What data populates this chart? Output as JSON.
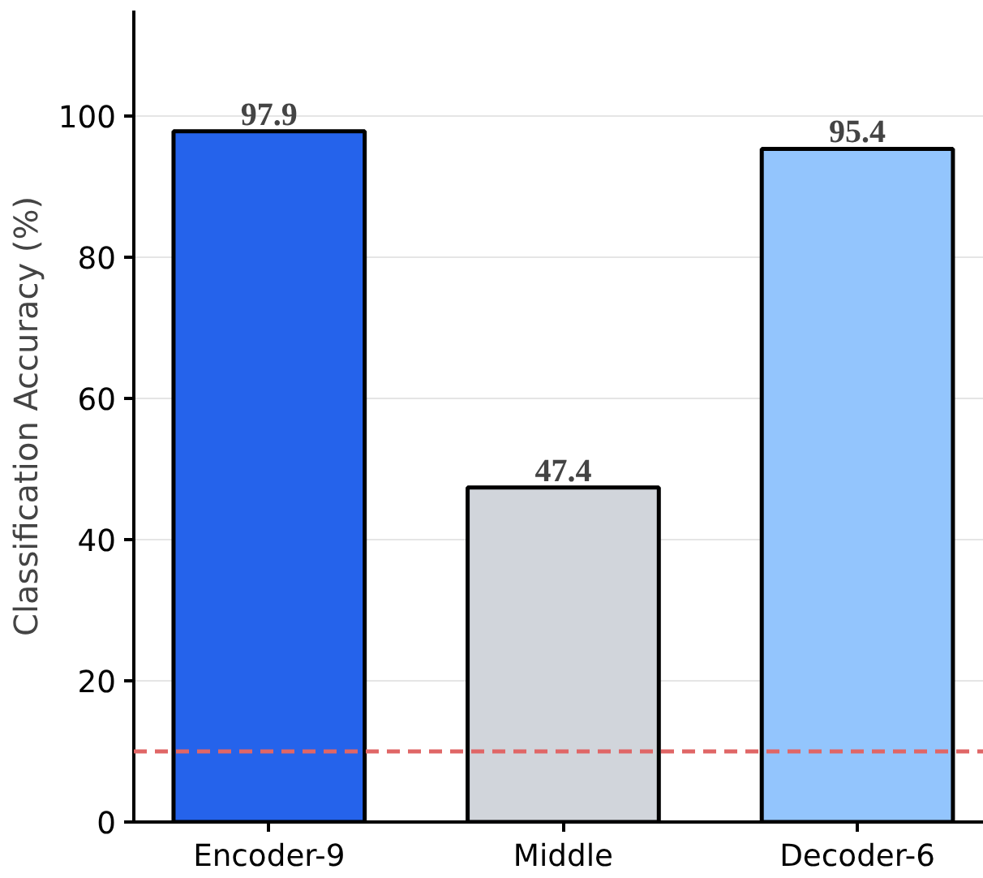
{
  "chart_data": {
    "type": "bar",
    "ylabel": "Classification Accuracy (%)",
    "categories": [
      "Encoder-9",
      "Middle",
      "Decoder-6"
    ],
    "values": [
      97.9,
      47.4,
      95.4
    ],
    "colors": [
      "#2563eb",
      "#d1d5db",
      "#93c5fd"
    ],
    "ylim": [
      0,
      115
    ],
    "yticks": [
      0,
      20,
      40,
      60,
      80,
      100
    ],
    "grid": "y",
    "data_labels": true,
    "ref_lines": [
      {
        "axis": "y",
        "value": 10,
        "color": "#e06666",
        "line_style": "dashed"
      }
    ]
  }
}
